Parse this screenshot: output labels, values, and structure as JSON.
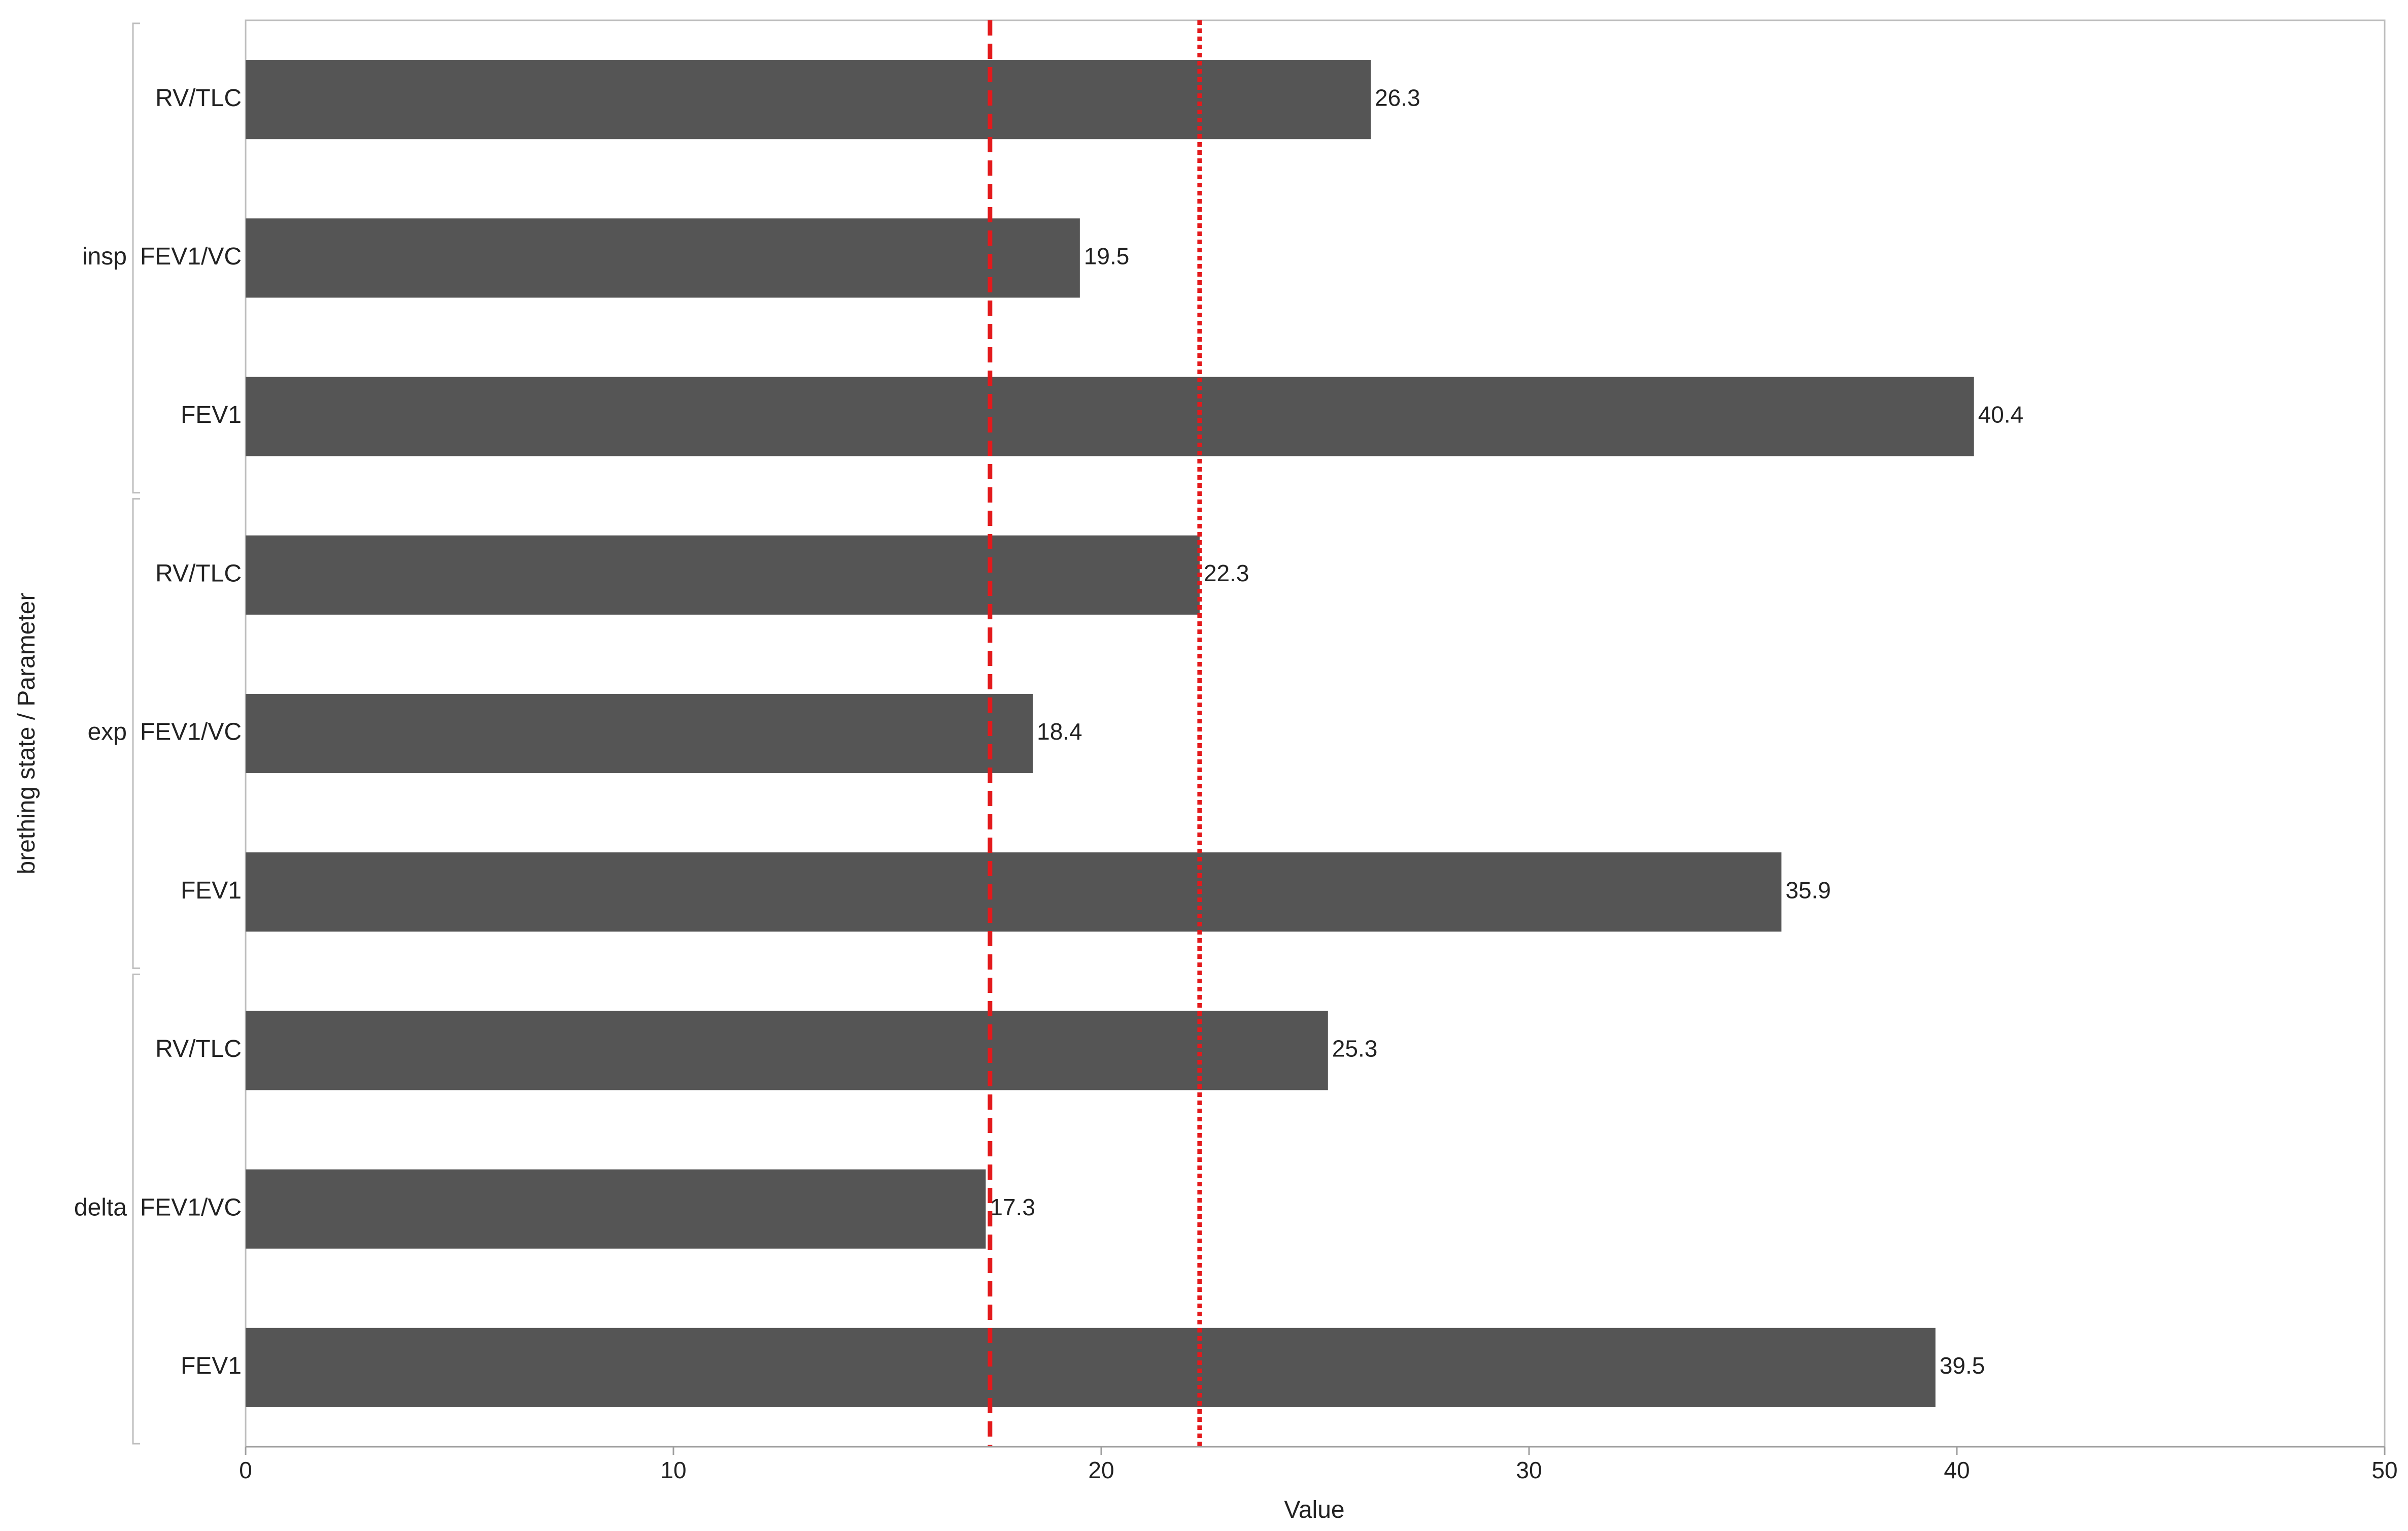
{
  "chart_data": {
    "type": "bar",
    "orientation": "horizontal",
    "xlabel": "Value",
    "ylabel": "brething state / Parameter",
    "xlim": [
      0,
      50
    ],
    "xticks": [
      0,
      10,
      20,
      30,
      40,
      50
    ],
    "grid": false,
    "bar_color": "#555555",
    "groups": [
      {
        "name": "insp",
        "items": [
          {
            "label": "RV/TLC",
            "value": 26.3,
            "value_label": "26.3"
          },
          {
            "label": "FEV1/VC",
            "value": 19.5,
            "value_label": "19.5"
          },
          {
            "label": "FEV1",
            "value": 40.4,
            "value_label": "40.4"
          }
        ]
      },
      {
        "name": "exp",
        "items": [
          {
            "label": "RV/TLC",
            "value": 22.3,
            "value_label": "22.3"
          },
          {
            "label": "FEV1/VC",
            "value": 18.4,
            "value_label": "18.4"
          },
          {
            "label": "FEV1",
            "value": 35.9,
            "value_label": "35.9"
          }
        ]
      },
      {
        "name": "delta",
        "items": [
          {
            "label": "RV/TLC",
            "value": 25.3,
            "value_label": "25.3"
          },
          {
            "label": "FEV1/VC",
            "value": 17.3,
            "value_label": "17.3"
          },
          {
            "label": "FEV1",
            "value": 39.5,
            "value_label": "39.5"
          }
        ]
      }
    ],
    "reference_lines": [
      {
        "value": 17.4,
        "style": "dashed",
        "color": "#e31a1c"
      },
      {
        "value": 22.3,
        "style": "dotted",
        "color": "#e31a1c"
      }
    ]
  }
}
